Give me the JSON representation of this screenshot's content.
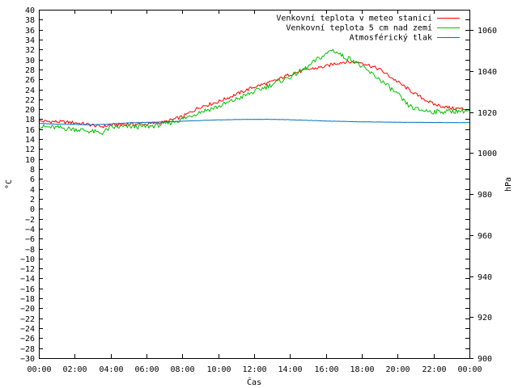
{
  "chart_data": {
    "type": "line",
    "title": "",
    "xlabel": "Čas",
    "ylabel": "°C",
    "y2label": "hPa",
    "x_ticks": [
      "00:00",
      "02:00",
      "04:00",
      "06:00",
      "08:00",
      "10:00",
      "12:00",
      "14:00",
      "16:00",
      "18:00",
      "20:00",
      "22:00",
      "00:00"
    ],
    "x_range_hours": [
      0,
      24
    ],
    "ylim": [
      -30,
      40
    ],
    "y_tick_step": 2,
    "y2lim": [
      900,
      1070
    ],
    "y2_ticks": [
      900,
      920,
      940,
      960,
      980,
      1000,
      1020,
      1040,
      1060
    ],
    "grid": false,
    "legend_position": "top-right",
    "series": [
      {
        "name": "Venkovní teplota v meteo stanici",
        "color": "#ff0000",
        "axis": "y",
        "x": [
          0,
          1,
          2,
          3,
          3.5,
          4,
          5,
          6,
          7,
          8,
          9,
          10,
          11,
          12,
          13,
          14,
          15,
          16,
          16.5,
          17,
          18,
          19,
          20,
          21,
          22,
          23,
          24
        ],
        "values": [
          17.6,
          17.5,
          17.3,
          16.8,
          16.5,
          16.8,
          17.0,
          17.0,
          17.4,
          18.5,
          20.5,
          21.5,
          23.0,
          24.5,
          25.5,
          27.0,
          28.0,
          28.6,
          29.2,
          29.5,
          29.4,
          28.0,
          25.5,
          23.0,
          21.0,
          20.2,
          20.0
        ]
      },
      {
        "name": "Venkovní teplota 5 cm nad zemí",
        "color": "#00c000",
        "axis": "y",
        "x": [
          0,
          1,
          2,
          3,
          3.5,
          4,
          5,
          6,
          7,
          8,
          9,
          10,
          11,
          12,
          13,
          14,
          15,
          15.5,
          16,
          16.3,
          16.6,
          17,
          17.5,
          18,
          19,
          20,
          20.5,
          21,
          22,
          23,
          24
        ],
        "values": [
          16.5,
          16.3,
          16.0,
          15.5,
          15.2,
          16.3,
          16.5,
          16.5,
          17.0,
          18.0,
          19.5,
          20.5,
          22.0,
          23.5,
          25.0,
          26.5,
          28.5,
          30.0,
          31.0,
          32.0,
          31.5,
          30.5,
          30.0,
          28.5,
          26.0,
          23.0,
          21.0,
          20.0,
          19.5,
          19.6,
          19.7
        ]
      },
      {
        "name": "Atmosférický tlak",
        "color": "#0070c0",
        "axis": "y2",
        "x": [
          0,
          1,
          2,
          3,
          4,
          5,
          6,
          7,
          8,
          9,
          10,
          11,
          12,
          13,
          14,
          15,
          16,
          17,
          18,
          19,
          20,
          21,
          22,
          23,
          24
        ],
        "values": [
          1014.5,
          1014.2,
          1014.0,
          1013.8,
          1014.2,
          1014.8,
          1015.0,
          1015.3,
          1015.6,
          1015.9,
          1016.2,
          1016.4,
          1016.5,
          1016.5,
          1016.3,
          1016.0,
          1015.7,
          1015.5,
          1015.3,
          1015.2,
          1015.1,
          1015.0,
          1015.0,
          1014.9,
          1014.9
        ]
      }
    ]
  }
}
